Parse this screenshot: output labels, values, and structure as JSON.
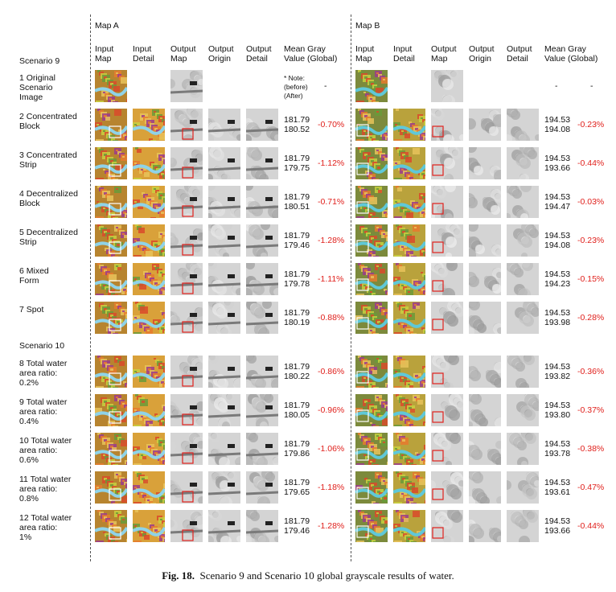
{
  "headers": {
    "map_a": "Map A",
    "map_b": "Map B",
    "input_map": "Input\nMap",
    "input_detail": "Input\nDetail",
    "output_map": "Output\nMap",
    "output_origin": "Output\nOrigin",
    "output_detail": "Output\nDetail",
    "mean_gray": "Mean Gray\nValue (Global)"
  },
  "scenario9_title": "Scenario 9",
  "scenario10_title": "Scenario 10",
  "note": "* Note:\n(before)\n(After)",
  "dash": "-",
  "rows": [
    {
      "label": "1  Original\n    Scenario\n    Image",
      "a_vals": "",
      "a_pct": "",
      "b_vals": "",
      "b_pct": ""
    },
    {
      "label": "2  Concentrated\n    Block",
      "a_vals": "181.79\n180.52",
      "a_pct": "-0.70%",
      "b_vals": "194.53\n194.08",
      "b_pct": "-0.23%"
    },
    {
      "label": "3  Concentrated\n    Strip",
      "a_vals": "181.79\n179.75",
      "a_pct": "-1.12%",
      "b_vals": "194.53\n193.66",
      "b_pct": "-0.44%"
    },
    {
      "label": "4  Decentralized\n    Block",
      "a_vals": "181.79\n180.51",
      "a_pct": "-0.71%",
      "b_vals": "194.53\n194.47",
      "b_pct": "-0.03%"
    },
    {
      "label": "5  Decentralized\n    Strip",
      "a_vals": "181.79\n179.46",
      "a_pct": "-1.28%",
      "b_vals": "194.53\n194.08",
      "b_pct": "-0.23%"
    },
    {
      "label": "6  Mixed\n    Form",
      "a_vals": "181.79\n179.78",
      "a_pct": "-1.11%",
      "b_vals": "194.53\n194.23",
      "b_pct": "-0.15%"
    },
    {
      "label": "7  Spot",
      "a_vals": "181.79\n180.19",
      "a_pct": "-0.88%",
      "b_vals": "194.53\n193.98",
      "b_pct": "-0.28%"
    },
    {
      "label": "8  Total water\n    area ratio:\n    0.2%",
      "a_vals": "181.79\n180.22",
      "a_pct": "-0.86%",
      "b_vals": "194.53\n193.82",
      "b_pct": "-0.36%"
    },
    {
      "label": "9  Total water\n    area ratio:\n    0.4%",
      "a_vals": "181.79\n180.05",
      "a_pct": "-0.96%",
      "b_vals": "194.53\n193.80",
      "b_pct": "-0.37%"
    },
    {
      "label": "10 Total water\n    area ratio:\n    0.6%",
      "a_vals": "181.79\n179.86",
      "a_pct": "-1.06%",
      "b_vals": "194.53\n193.78",
      "b_pct": "-0.38%"
    },
    {
      "label": "11 Total water\n    area ratio:\n    0.8%",
      "a_vals": "181.79\n179.65",
      "a_pct": "-1.18%",
      "b_vals": "194.53\n193.61",
      "b_pct": "-0.47%"
    },
    {
      "label": "12 Total water\n    area ratio:\n    1%",
      "a_vals": "181.79\n179.46",
      "a_pct": "-1.28%",
      "b_vals": "194.53\n193.66",
      "b_pct": "-0.44%"
    }
  ],
  "caption_fig": "Fig. 18.",
  "caption_text": "Scenario 9 and Scenario 10 global grayscale results of water.",
  "colors": {
    "percent_red": "#e0201c",
    "map_a_bg": "#b7842f",
    "map_b_bg": "#7c8a3c",
    "water_a": "#8fd3e8",
    "water_b": "#5fc8d8",
    "highlight_red": "#e0201c",
    "highlight_white": "#ffffff"
  }
}
